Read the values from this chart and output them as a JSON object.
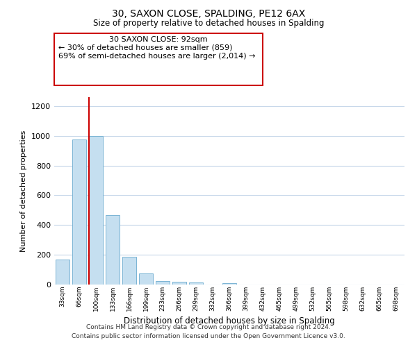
{
  "title1": "30, SAXON CLOSE, SPALDING, PE12 6AX",
  "title2": "Size of property relative to detached houses in Spalding",
  "xlabel": "Distribution of detached houses by size in Spalding",
  "ylabel": "Number of detached properties",
  "bar_labels": [
    "33sqm",
    "66sqm",
    "100sqm",
    "133sqm",
    "166sqm",
    "199sqm",
    "233sqm",
    "266sqm",
    "299sqm",
    "332sqm",
    "366sqm",
    "399sqm",
    "432sqm",
    "465sqm",
    "499sqm",
    "532sqm",
    "565sqm",
    "598sqm",
    "632sqm",
    "665sqm",
    "698sqm"
  ],
  "bar_values": [
    170,
    975,
    1000,
    465,
    185,
    75,
    25,
    20,
    15,
    0,
    10,
    0,
    0,
    0,
    0,
    0,
    0,
    0,
    0,
    0,
    0
  ],
  "bar_color": "#c5dff0",
  "bar_edge_color": "#7ab4d4",
  "vline_color": "#cc0000",
  "annotation_line1": "30 SAXON CLOSE: 92sqm",
  "annotation_line2": "← 30% of detached houses are smaller (859)",
  "annotation_line3": "69% of semi-detached houses are larger (2,014) →",
  "annotation_box_edge": "#cc0000",
  "ylim": [
    0,
    1260
  ],
  "yticks": [
    0,
    200,
    400,
    600,
    800,
    1000,
    1200
  ],
  "footer1": "Contains HM Land Registry data © Crown copyright and database right 2024.",
  "footer2": "Contains public sector information licensed under the Open Government Licence v3.0.",
  "bg_color": "#ffffff",
  "grid_color": "#c8d8ea"
}
